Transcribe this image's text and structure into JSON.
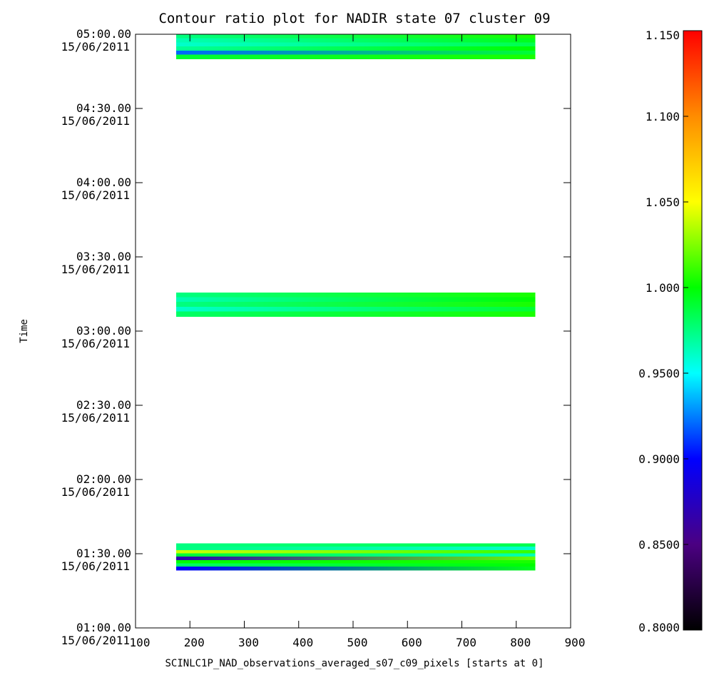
{
  "chart_data": {
    "type": "heatmap",
    "title": "Contour ratio plot for NADIR state 07 cluster 09",
    "xlabel": "SCINLC1P_NAD_observations_averaged_s07_c09_pixels [starts at 0]",
    "ylabel": "Time",
    "x_ticks": [
      "100",
      "200",
      "300",
      "400",
      "500",
      "600",
      "700",
      "800",
      "900"
    ],
    "xlim": [
      100,
      900
    ],
    "y_ticks": [
      {
        "time": "01:00.00",
        "date": "15/06/2011"
      },
      {
        "time": "01:30.00",
        "date": "15/06/2011"
      },
      {
        "time": "02:00.00",
        "date": "15/06/2011"
      },
      {
        "time": "02:30.00",
        "date": "15/06/2011"
      },
      {
        "time": "03:00.00",
        "date": "15/06/2011"
      },
      {
        "time": "03:30.00",
        "date": "15/06/2011"
      },
      {
        "time": "04:00.00",
        "date": "15/06/2011"
      },
      {
        "time": "04:30.00",
        "date": "15/06/2011"
      },
      {
        "time": "05:00.00",
        "date": "15/06/2011"
      }
    ],
    "ylim_hours": [
      1.0,
      5.0
    ],
    "colorbar": {
      "range": [
        0.8,
        1.15
      ],
      "ticks": [
        "0.8000",
        "0.8500",
        "0.9000",
        "0.9500",
        "1.000",
        "1.050",
        "1.100",
        "1.150"
      ],
      "colormap": [
        "#000000",
        "#4b0082",
        "#0000ff",
        "#00ffff",
        "#00ff00",
        "#ffff00",
        "#ff8c00",
        "#ff0000"
      ]
    },
    "blocks": [
      {
        "x_range": [
          175,
          835
        ],
        "y_range_hours": [
          4.835,
          5.0
        ],
        "rows": [
          {
            "left": 0.975,
            "right": 1.005
          },
          {
            "left": 0.965,
            "right": 0.995
          },
          {
            "left": 0.96,
            "right": 0.985
          },
          {
            "left": 0.97,
            "right": 1.0
          },
          {
            "left": 0.92,
            "right": 0.99
          },
          {
            "left": 0.99,
            "right": 1.005
          }
        ]
      },
      {
        "x_range": [
          175,
          835
        ],
        "y_range_hours": [
          3.1,
          3.26
        ],
        "rows": [
          {
            "left": 0.975,
            "right": 1.005
          },
          {
            "left": 0.965,
            "right": 1.0
          },
          {
            "left": 0.975,
            "right": 1.005
          },
          {
            "left": 0.96,
            "right": 0.99
          },
          {
            "left": 0.98,
            "right": 1.005
          }
        ]
      },
      {
        "x_range": [
          175,
          835
        ],
        "y_range_hours": [
          1.39,
          1.57
        ],
        "rows": [
          {
            "left": 0.975,
            "right": 0.985
          },
          {
            "left": 0.975,
            "right": 0.96
          },
          {
            "left": 1.04,
            "right": 1.01
          },
          {
            "left": 0.99,
            "right": 0.965
          },
          {
            "left": 0.87,
            "right": 1.02
          },
          {
            "left": 1.0,
            "right": 1.005
          },
          {
            "left": 0.98,
            "right": 1.0
          },
          {
            "left": 0.9,
            "right": 0.995
          }
        ]
      }
    ]
  }
}
